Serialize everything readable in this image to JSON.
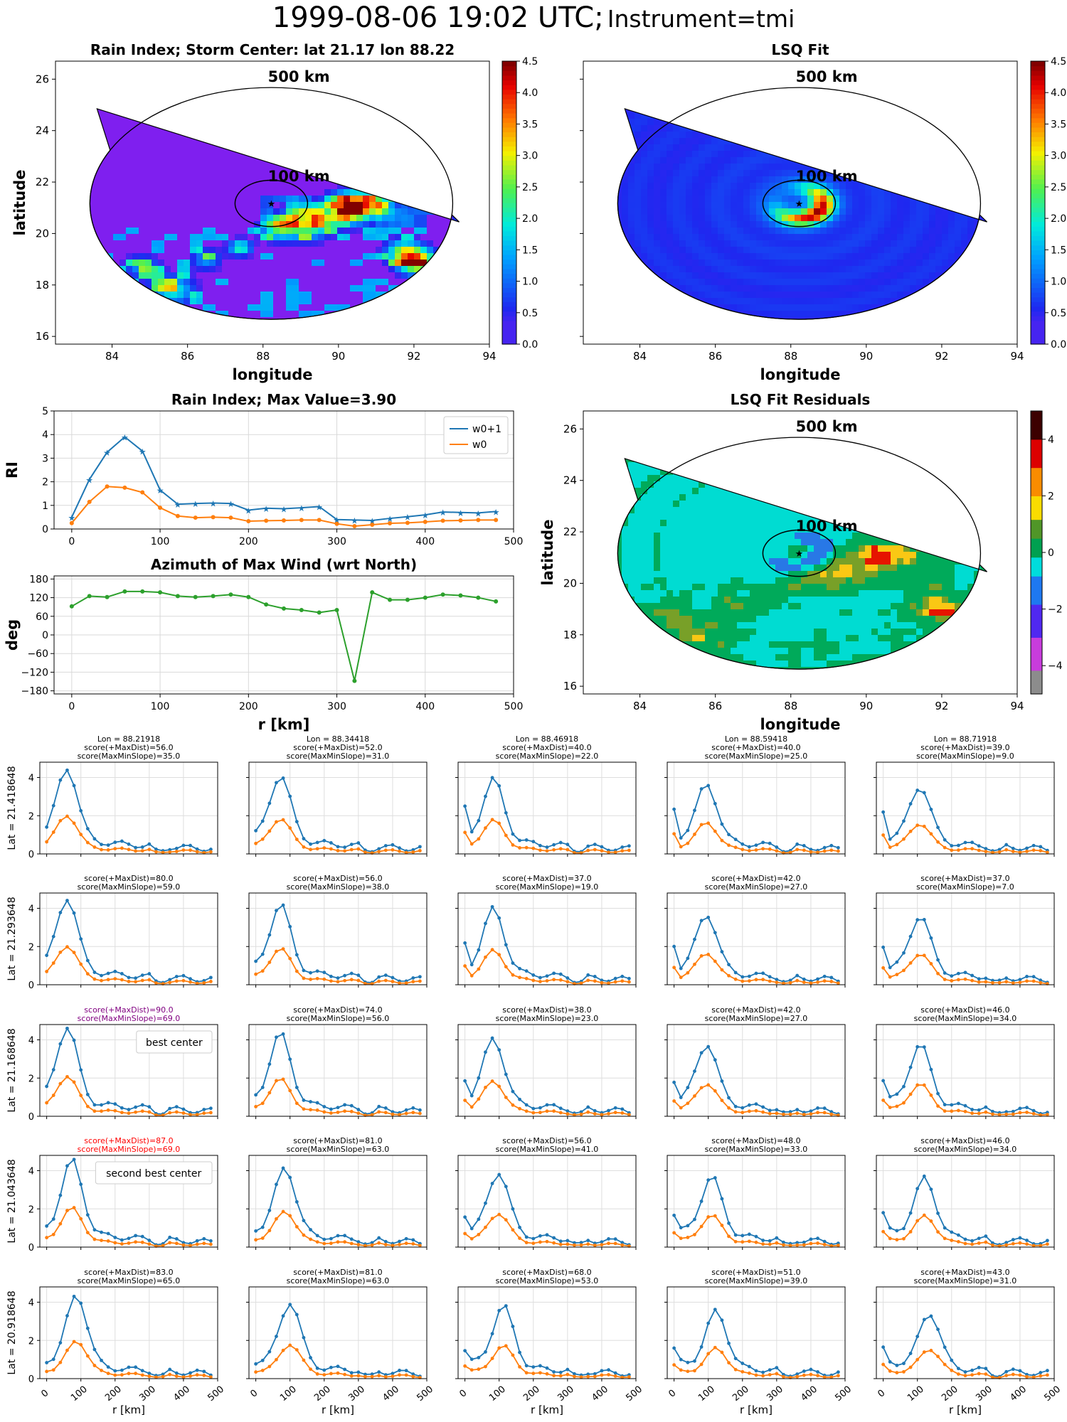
{
  "suptitle": {
    "main": "1999-08-06 19:02 UTC;",
    "instrument": "Instrument=tmi"
  },
  "colors": {
    "w0p1": "#1f77b4",
    "w0": "#ff7f0e",
    "az": "#2ca02c",
    "purple": "#800080",
    "red": "#ff0000",
    "field_bg": "#7f1fef"
  },
  "chart_data": [
    {
      "id": "rain_index_map",
      "type": "heatmap",
      "title": "Rain Index; Storm Center: lat 21.17 lon 88.22",
      "xlabel": "longitude",
      "ylabel": "latitude",
      "xlim": [
        82.5,
        94
      ],
      "ylim": [
        15.7,
        26.7
      ],
      "xticks": [
        84,
        86,
        88,
        90,
        92,
        94
      ],
      "yticks": [
        16,
        18,
        20,
        22,
        24,
        26
      ],
      "circle_labels": [
        "500 km",
        "100 km"
      ],
      "colorbar": {
        "min": 0,
        "max": 4.5,
        "ticks": [
          "0.0",
          "0.5",
          "1.0",
          "1.5",
          "2.0",
          "2.5",
          "3.0",
          "3.5",
          "4.0",
          "4.5"
        ]
      },
      "center": {
        "lat": 21.17,
        "lon": 88.22
      }
    },
    {
      "id": "lsq_fit_map",
      "type": "heatmap",
      "title": "LSQ Fit",
      "xlabel": "longitude",
      "ylabel": "",
      "xlim": [
        82.5,
        94
      ],
      "ylim": [
        15.7,
        26.7
      ],
      "xticks": [
        84,
        86,
        88,
        90,
        92,
        94
      ],
      "circle_labels": [
        "500 km",
        "100 km"
      ],
      "colorbar": {
        "min": 0,
        "max": 4.5,
        "ticks": [
          "0.0",
          "0.5",
          "1.0",
          "1.5",
          "2.0",
          "2.5",
          "3.0",
          "3.5",
          "4.0",
          "4.5"
        ]
      }
    },
    {
      "id": "rain_index_profile",
      "type": "line",
      "title": "Rain Index; Max Value=3.90",
      "ylabel": "RI",
      "xlim": [
        -20,
        500
      ],
      "ylim": [
        0,
        5
      ],
      "xticks": [
        0,
        100,
        200,
        300,
        400,
        500
      ],
      "yticks": [
        0,
        1,
        2,
        3,
        4,
        5
      ],
      "x": [
        0,
        20,
        40,
        60,
        80,
        100,
        120,
        140,
        160,
        180,
        200,
        220,
        240,
        260,
        280,
        300,
        320,
        340,
        360,
        380,
        400,
        420,
        440,
        460,
        480
      ],
      "series": [
        {
          "name": "w0+1",
          "values": [
            0.5,
            2.1,
            3.25,
            3.9,
            3.3,
            1.65,
            1.05,
            1.08,
            1.1,
            1.08,
            0.8,
            0.88,
            0.86,
            0.9,
            0.95,
            0.4,
            0.38,
            0.36,
            0.45,
            0.52,
            0.6,
            0.72,
            0.7,
            0.68,
            0.74
          ]
        },
        {
          "name": "w0",
          "values": [
            0.25,
            1.15,
            1.8,
            1.75,
            1.55,
            0.9,
            0.55,
            0.48,
            0.5,
            0.48,
            0.33,
            0.35,
            0.36,
            0.38,
            0.38,
            0.22,
            0.12,
            0.18,
            0.24,
            0.26,
            0.3,
            0.35,
            0.36,
            0.38,
            0.38
          ]
        }
      ],
      "legend_position": "top-right"
    },
    {
      "id": "azimuth_profile",
      "type": "line",
      "title": "Azimuth of Max Wind (wrt North)",
      "xlabel": "r [km]",
      "ylabel": "deg",
      "xlim": [
        -20,
        500
      ],
      "ylim": [
        -190,
        190
      ],
      "xticks": [
        0,
        100,
        200,
        300,
        400,
        500
      ],
      "yticks": [
        180,
        120,
        60,
        0,
        -60,
        -120,
        -180
      ],
      "x": [
        0,
        20,
        40,
        60,
        80,
        100,
        120,
        140,
        160,
        180,
        200,
        220,
        240,
        260,
        280,
        300,
        320,
        340,
        360,
        380,
        400,
        420,
        440,
        460,
        480
      ],
      "values": [
        92,
        125,
        122,
        140,
        140,
        137,
        125,
        122,
        125,
        130,
        122,
        98,
        85,
        80,
        72,
        80,
        -148,
        137,
        113,
        113,
        120,
        130,
        127,
        120,
        108
      ]
    },
    {
      "id": "lsq_residuals_map",
      "type": "heatmap",
      "title": "LSQ Fit Residuals",
      "xlabel": "longitude",
      "ylabel": "latitude",
      "xlim": [
        82.5,
        94
      ],
      "ylim": [
        15.7,
        26.7
      ],
      "xticks": [
        84,
        86,
        88,
        90,
        92,
        94
      ],
      "yticks": [
        16,
        18,
        20,
        22,
        24,
        26
      ],
      "circle_labels": [
        "500 km",
        "100 km"
      ],
      "colorbar": {
        "min": -5,
        "max": 5,
        "ticks": [
          "−4",
          "−2",
          "0",
          "2",
          "4"
        ]
      }
    }
  ],
  "grid": {
    "xlabel": "r [km]",
    "xticks": [
      0,
      100,
      200,
      300,
      400,
      500
    ],
    "yticks": [
      0,
      2,
      4
    ],
    "rows": [
      {
        "lat_label": "Lat = 21.418648",
        "cells": [
          {
            "header": [
              "Lon = 88.21918",
              "score(+MaxDist)=56.0",
              "score(MaxMinSlope)=35.0"
            ]
          },
          {
            "header": [
              "Lon = 88.34418",
              "score(+MaxDist)=52.0",
              "score(MaxMinSlope)=31.0"
            ]
          },
          {
            "header": [
              "Lon = 88.46918",
              "score(+MaxDist)=40.0",
              "score(MaxMinSlope)=22.0"
            ]
          },
          {
            "header": [
              "Lon = 88.59418",
              "score(+MaxDist)=40.0",
              "score(MaxMinSlope)=25.0"
            ]
          },
          {
            "header": [
              "Lon = 88.71918",
              "score(+MaxDist)=39.0",
              "score(MaxMinSlope)=9.0"
            ]
          }
        ]
      },
      {
        "lat_label": "Lat = 21.293648",
        "cells": [
          {
            "header": [
              "score(+MaxDist)=80.0",
              "score(MaxMinSlope)=59.0"
            ]
          },
          {
            "header": [
              "score(+MaxDist)=56.0",
              "score(MaxMinSlope)=38.0"
            ]
          },
          {
            "header": [
              "score(+MaxDist)=37.0",
              "score(MaxMinSlope)=19.0"
            ]
          },
          {
            "header": [
              "score(+MaxDist)=42.0",
              "score(MaxMinSlope)=27.0"
            ]
          },
          {
            "header": [
              "score(+MaxDist)=37.0",
              "score(MaxMinSlope)=7.0"
            ]
          }
        ]
      },
      {
        "lat_label": "Lat = 21.168648",
        "cells": [
          {
            "header": [
              "score(+MaxDist)=90.0",
              "score(MaxMinSlope)=69.0"
            ],
            "header_color": "purple",
            "box_label": "best center"
          },
          {
            "header": [
              "score(+MaxDist)=74.0",
              "score(MaxMinSlope)=56.0"
            ]
          },
          {
            "header": [
              "score(+MaxDist)=38.0",
              "score(MaxMinSlope)=23.0"
            ]
          },
          {
            "header": [
              "score(+MaxDist)=42.0",
              "score(MaxMinSlope)=27.0"
            ]
          },
          {
            "header": [
              "score(+MaxDist)=46.0",
              "score(MaxMinSlope)=34.0"
            ]
          }
        ]
      },
      {
        "lat_label": "Lat = 21.043648",
        "cells": [
          {
            "header": [
              "score(+MaxDist)=87.0",
              "score(MaxMinSlope)=69.0"
            ],
            "header_color": "red",
            "box_label": "second best center"
          },
          {
            "header": [
              "score(+MaxDist)=81.0",
              "score(MaxMinSlope)=63.0"
            ]
          },
          {
            "header": [
              "score(+MaxDist)=56.0",
              "score(MaxMinSlope)=41.0"
            ]
          },
          {
            "header": [
              "score(+MaxDist)=48.0",
              "score(MaxMinSlope)=33.0"
            ]
          },
          {
            "header": [
              "score(+MaxDist)=46.0",
              "score(MaxMinSlope)=34.0"
            ]
          }
        ]
      },
      {
        "lat_label": "Lat = 20.918648",
        "cells": [
          {
            "header": [
              "score(+MaxDist)=83.0",
              "score(MaxMinSlope)=65.0"
            ]
          },
          {
            "header": [
              "score(+MaxDist)=81.0",
              "score(MaxMinSlope)=63.0"
            ]
          },
          {
            "header": [
              "score(+MaxDist)=68.0",
              "score(MaxMinSlope)=53.0"
            ]
          },
          {
            "header": [
              "score(+MaxDist)=51.0",
              "score(MaxMinSlope)=39.0"
            ]
          },
          {
            "header": [
              "score(+MaxDist)=43.0",
              "score(MaxMinSlope)=31.0"
            ]
          }
        ]
      }
    ]
  }
}
